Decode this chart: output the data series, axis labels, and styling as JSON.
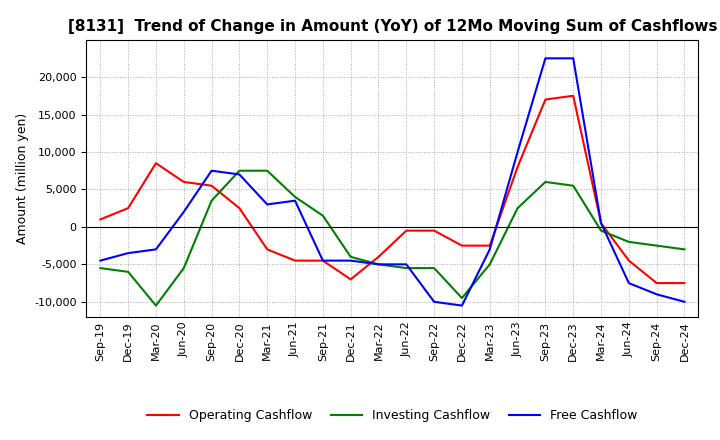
{
  "title": "[8131]  Trend of Change in Amount (YoY) of 12Mo Moving Sum of Cashflows",
  "ylabel": "Amount (million yen)",
  "xlabels": [
    "Sep-19",
    "Dec-19",
    "Mar-20",
    "Jun-20",
    "Sep-20",
    "Dec-20",
    "Mar-21",
    "Jun-21",
    "Sep-21",
    "Dec-21",
    "Mar-22",
    "Jun-22",
    "Sep-22",
    "Dec-22",
    "Mar-23",
    "Jun-23",
    "Sep-23",
    "Dec-23",
    "Mar-24",
    "Jun-24",
    "Sep-24",
    "Dec-24"
  ],
  "operating": [
    1000,
    2500,
    8500,
    6000,
    5500,
    2500,
    -3000,
    -4500,
    -4500,
    -7000,
    -4000,
    -500,
    -500,
    -2500,
    -2500,
    8000,
    17000,
    17500,
    500,
    -4500,
    -7500,
    -7500
  ],
  "investing": [
    -5500,
    -6000,
    -10500,
    -5500,
    3500,
    7500,
    7500,
    4000,
    1500,
    -4000,
    -5000,
    -5500,
    -5500,
    -9500,
    -5000,
    2500,
    6000,
    5500,
    -500,
    -2000,
    -2500,
    -3000
  ],
  "free": [
    -4500,
    -3500,
    -3000,
    2000,
    7500,
    7000,
    3000,
    3500,
    -4500,
    -4500,
    -5000,
    -5000,
    -10000,
    -10500,
    -3000,
    10000,
    22500,
    22500,
    500,
    -7500,
    -9000,
    -10000
  ],
  "ylim": [
    -12000,
    25000
  ],
  "yticks": [
    -10000,
    -5000,
    0,
    5000,
    10000,
    15000,
    20000
  ],
  "operating_color": "#ff0000",
  "investing_color": "#008000",
  "free_color": "#0000ff",
  "background_color": "#ffffff",
  "grid_color": "#aaaaaa",
  "title_fontsize": 11,
  "legend_labels": [
    "Operating Cashflow",
    "Investing Cashflow",
    "Free Cashflow"
  ]
}
